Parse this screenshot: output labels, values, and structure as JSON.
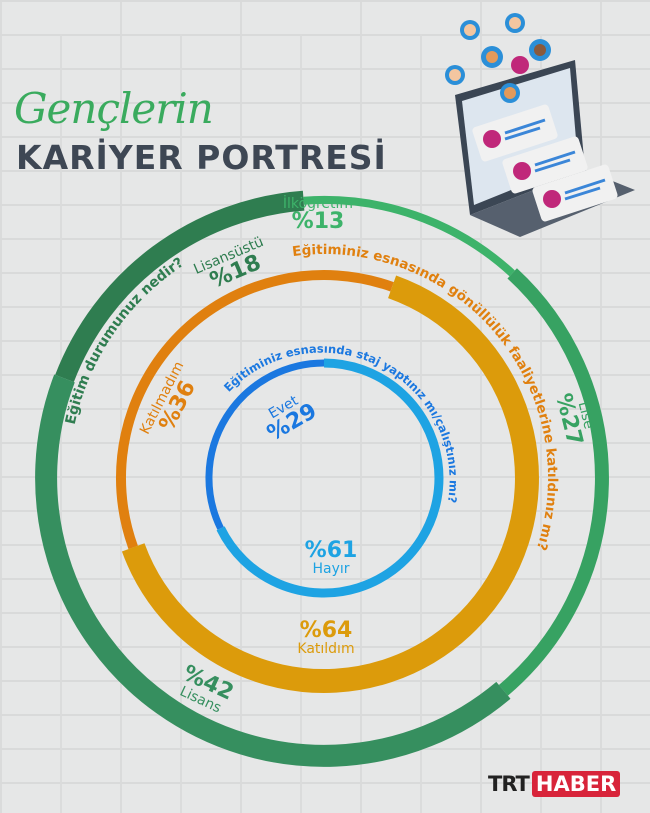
{
  "header": {
    "title_script": "Gençlerin",
    "title_bold": "KARİYER PORTRESİ"
  },
  "logo": {
    "part1": "TRT",
    "part2": "HABER"
  },
  "colors": {
    "green_dark": "#2f7d50",
    "green_light": "#3db36a",
    "green_lise": "#37a262",
    "green_lisans": "#368f5f",
    "orange_dark": "#e0800f",
    "orange_light": "#dc9b0b",
    "blue_dark": "#1b78e0",
    "blue_light": "#1ea3e3",
    "title_dark": "#3e4754"
  },
  "chart_data": [
    {
      "type": "pie",
      "style": "ring",
      "title": "Eğitim durumunuz nedir?",
      "categories": [
        "Lisansüstü",
        "İlköğretim",
        "Lise",
        "Lisans"
      ],
      "values": [
        18,
        13,
        27,
        42
      ],
      "labels": [
        "%18",
        "%13",
        "%27",
        "%42"
      ],
      "colors": [
        "#2f7d50",
        "#3db36a",
        "#37a262",
        "#368f5f"
      ]
    },
    {
      "type": "pie",
      "style": "ring",
      "title": "Eğitiminiz esnasında gönüllülük faaliyetlerine katıldınız mı?",
      "categories": [
        "Katılmadım",
        "Katıldım"
      ],
      "values": [
        36,
        64
      ],
      "labels": [
        "%36",
        "%64"
      ],
      "colors": [
        "#e0800f",
        "#dc9b0b"
      ]
    },
    {
      "type": "pie",
      "style": "ring",
      "title": "Eğitiminiz esnasında staj yaptınız mı/çalıştınız mı?",
      "categories": [
        "Evet",
        "Hayır"
      ],
      "values": [
        29,
        61
      ],
      "labels": [
        "%29",
        "%61"
      ],
      "colors": [
        "#1b78e0",
        "#1ea3e3"
      ]
    }
  ]
}
